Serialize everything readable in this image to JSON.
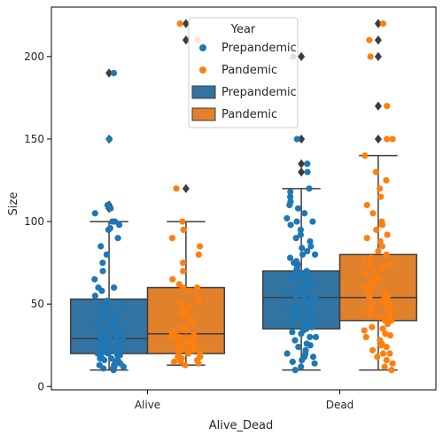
{
  "chart_data": {
    "type": "boxplot",
    "title": "",
    "xlabel": "Alive_Dead",
    "ylabel": "Size",
    "categories": [
      "Alive",
      "Dead"
    ],
    "ylim": [
      -2,
      230
    ],
    "yticks": [
      0,
      50,
      100,
      150,
      200
    ],
    "grid": false,
    "legend": {
      "title": "Year",
      "placement": "top-center",
      "entries": [
        {
          "label": "Prepandemic",
          "marker": "dot",
          "series": "Prepandemic"
        },
        {
          "label": "Pandemic",
          "marker": "dot",
          "series": "Pandemic"
        },
        {
          "label": "Prepandemic",
          "marker": "box",
          "series": "Prepandemic"
        },
        {
          "label": "Pandemic",
          "marker": "box",
          "series": "Pandemic"
        }
      ]
    },
    "series": [
      {
        "name": "Prepandemic",
        "color": "#1f77b4",
        "box_color": "#3274a1",
        "boxes": [
          {
            "category": "Alive",
            "q1": 20,
            "median": 29,
            "q3": 53,
            "whisker_low": 10,
            "whisker_high": 100,
            "outliers": [
              108,
              110,
              150,
              190
            ]
          },
          {
            "category": "Dead",
            "q1": 35,
            "median": 54,
            "q3": 70,
            "whisker_low": 10,
            "whisker_high": 120,
            "outliers": [
              130,
              135,
              150,
              200
            ]
          }
        ],
        "points": [
          {
            "category": "Alive",
            "values": [
              10,
              11,
              11,
              12,
              12,
              13,
              13,
              14,
              14,
              15,
              15,
              16,
              16,
              17,
              17,
              18,
              18,
              19,
              19,
              20,
              20,
              20,
              21,
              21,
              22,
              22,
              23,
              23,
              24,
              25,
              25,
              26,
              26,
              27,
              27,
              28,
              28,
              29,
              29,
              30,
              30,
              31,
              32,
              33,
              34,
              35,
              36,
              37,
              38,
              40,
              40,
              42,
              44,
              45,
              47,
              48,
              50,
              50,
              52,
              55,
              58,
              60,
              60,
              65,
              70,
              75,
              80,
              85,
              90,
              95,
              96,
              98,
              100,
              100,
              105,
              108,
              110,
              150,
              190
            ]
          },
          {
            "category": "Dead",
            "values": [
              10,
              12,
              14,
              15,
              16,
              18,
              18,
              20,
              20,
              22,
              24,
              25,
              26,
              28,
              30,
              30,
              32,
              33,
              34,
              35,
              36,
              37,
              38,
              39,
              40,
              40,
              41,
              42,
              43,
              44,
              45,
              45,
              46,
              47,
              48,
              49,
              50,
              50,
              51,
              52,
              53,
              54,
              55,
              55,
              56,
              57,
              58,
              59,
              60,
              60,
              61,
              62,
              63,
              64,
              65,
              66,
              67,
              68,
              69,
              70,
              70,
              72,
              74,
              75,
              76,
              78,
              80,
              80,
              82,
              84,
              85,
              88,
              90,
              92,
              95,
              98,
              100,
              100,
              102,
              105,
              108,
              110,
              112,
              115,
              118,
              120,
              130,
              135,
              150,
              200
            ]
          }
        ]
      },
      {
        "name": "Pandemic",
        "color": "#ff7f0e",
        "box_color": "#e1812c",
        "boxes": [
          {
            "category": "Alive",
            "q1": 20,
            "median": 32,
            "q3": 60,
            "whisker_low": 13,
            "whisker_high": 100,
            "outliers": [
              120,
              210,
              220
            ]
          },
          {
            "category": "Dead",
            "q1": 40,
            "median": 54,
            "q3": 80,
            "whisker_low": 10,
            "whisker_high": 140,
            "outliers": [
              150,
              170,
              200,
              210,
              220
            ]
          }
        ],
        "points": [
          {
            "category": "Alive",
            "values": [
              13,
              14,
              15,
              15,
              16,
              17,
              18,
              18,
              19,
              20,
              20,
              21,
              22,
              23,
              24,
              25,
              25,
              26,
              27,
              28,
              29,
              30,
              30,
              31,
              32,
              33,
              34,
              35,
              36,
              38,
              40,
              42,
              44,
              45,
              46,
              48,
              50,
              52,
              55,
              58,
              60,
              60,
              62,
              65,
              70,
              75,
              80,
              85,
              90,
              95,
              100,
              120,
              210,
              220
            ]
          },
          {
            "category": "Dead",
            "values": [
              10,
              12,
              14,
              16,
              18,
              20,
              20,
              22,
              24,
              25,
              26,
              28,
              30,
              31,
              32,
              34,
              35,
              36,
              38,
              40,
              40,
              42,
              43,
              44,
              45,
              46,
              47,
              48,
              49,
              50,
              50,
              51,
              52,
              53,
              54,
              55,
              56,
              57,
              58,
              59,
              60,
              62,
              64,
              65,
              66,
              68,
              70,
              72,
              74,
              75,
              76,
              78,
              80,
              82,
              85,
              88,
              90,
              92,
              95,
              98,
              100,
              105,
              110,
              115,
              120,
              125,
              130,
              140,
              150,
              150,
              170,
              200,
              210,
              220
            ]
          }
        ]
      }
    ]
  }
}
